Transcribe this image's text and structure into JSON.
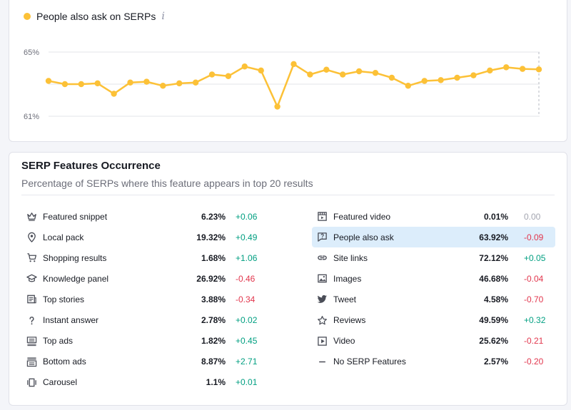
{
  "chart": {
    "legend_label": "People also ask on SERPs",
    "info_icon": "i",
    "y_labels": [
      "65%",
      "61%"
    ],
    "color": "#fcc137"
  },
  "chart_data": {
    "type": "line",
    "series": [
      {
        "name": "People also ask on SERPs",
        "values": [
          63.2,
          63.0,
          63.0,
          63.05,
          62.4,
          63.1,
          63.15,
          62.9,
          63.05,
          63.1,
          63.6,
          63.5,
          64.1,
          63.85,
          61.6,
          64.25,
          63.6,
          63.9,
          63.6,
          63.8,
          63.7,
          63.4,
          62.9,
          63.2,
          63.25,
          63.4,
          63.55,
          63.85,
          64.05,
          63.95,
          63.92
        ]
      }
    ],
    "ylim": [
      61,
      65
    ],
    "grid": true
  },
  "features": {
    "title": "SERP Features Occurrence",
    "subtitle": "Percentage of SERPs where this feature appears in top 20 results",
    "left": [
      {
        "icon": "crown-icon",
        "label": "Featured snippet",
        "value": "6.23%",
        "delta": "+0.06",
        "trend": "pos"
      },
      {
        "icon": "map-pin-icon",
        "label": "Local pack",
        "value": "19.32%",
        "delta": "+0.49",
        "trend": "pos"
      },
      {
        "icon": "shopping-cart-icon",
        "label": "Shopping results",
        "value": "1.68%",
        "delta": "+1.06",
        "trend": "pos"
      },
      {
        "icon": "graduation-cap-icon",
        "label": "Knowledge panel",
        "value": "26.92%",
        "delta": "-0.46",
        "trend": "neg"
      },
      {
        "icon": "newspaper-icon",
        "label": "Top stories",
        "value": "3.88%",
        "delta": "-0.34",
        "trend": "neg"
      },
      {
        "icon": "question-mark-icon",
        "label": "Instant answer",
        "value": "2.78%",
        "delta": "+0.02",
        "trend": "pos"
      },
      {
        "icon": "ad-top-icon",
        "label": "Top ads",
        "value": "1.82%",
        "delta": "+0.45",
        "trend": "pos"
      },
      {
        "icon": "ad-bottom-icon",
        "label": "Bottom ads",
        "value": "8.87%",
        "delta": "+2.71",
        "trend": "pos"
      },
      {
        "icon": "carousel-icon",
        "label": "Carousel",
        "value": "1.1%",
        "delta": "+0.01",
        "trend": "pos"
      }
    ],
    "right": [
      {
        "icon": "video-frame-icon",
        "label": "Featured video",
        "value": "0.01%",
        "delta": "0.00",
        "trend": "zero"
      },
      {
        "icon": "question-bubble-icon",
        "label": "People also ask",
        "value": "63.92%",
        "delta": "-0.09",
        "trend": "neg",
        "highlight": true
      },
      {
        "icon": "link-icon",
        "label": "Site links",
        "value": "72.12%",
        "delta": "+0.05",
        "trend": "pos"
      },
      {
        "icon": "image-icon",
        "label": "Images",
        "value": "46.68%",
        "delta": "-0.04",
        "trend": "neg"
      },
      {
        "icon": "twitter-bird-icon",
        "label": "Tweet",
        "value": "4.58%",
        "delta": "-0.70",
        "trend": "neg"
      },
      {
        "icon": "star-icon",
        "label": "Reviews",
        "value": "49.59%",
        "delta": "+0.32",
        "trend": "pos"
      },
      {
        "icon": "play-icon",
        "label": "Video",
        "value": "25.62%",
        "delta": "-0.21",
        "trend": "neg"
      },
      {
        "icon": "minus-icon",
        "label": "No SERP Features",
        "value": "2.57%",
        "delta": "-0.20",
        "trend": "neg"
      }
    ]
  }
}
